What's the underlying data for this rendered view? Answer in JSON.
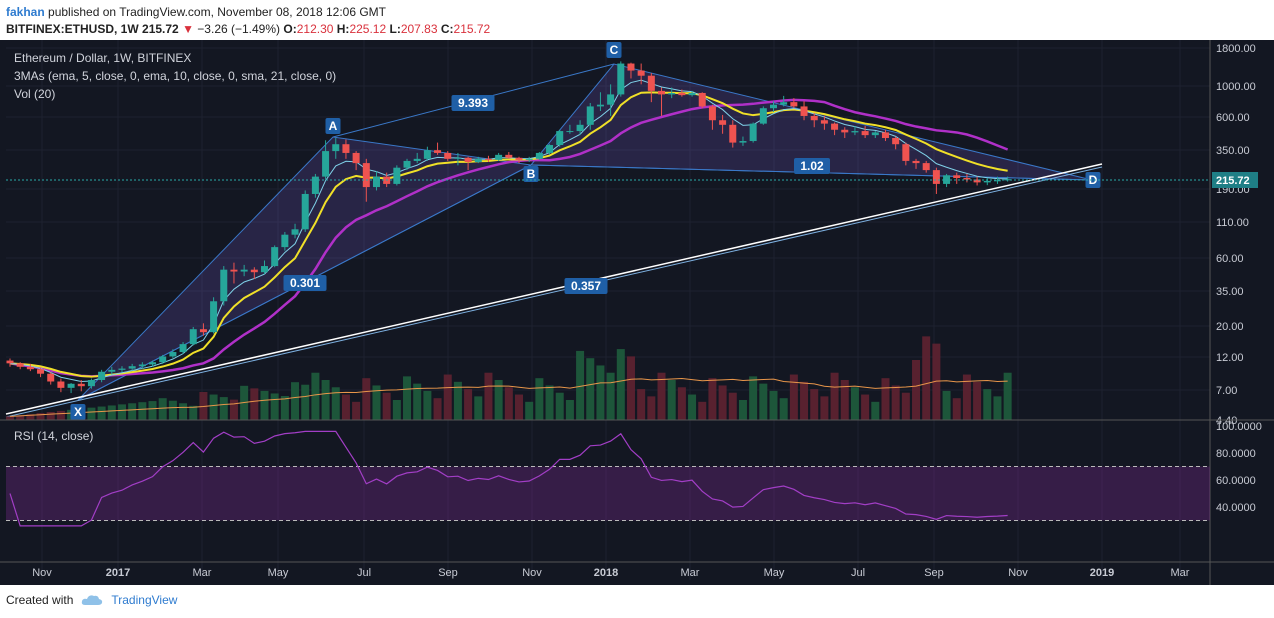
{
  "header": {
    "user": "fakhan",
    "published": "published on TradingView.com, November 08, 2018 12:06 GMT",
    "symbol": "BITFINEX:ETHUSD, 1W",
    "last": "215.72",
    "change": "−3.26 (−1.49%)",
    "open_label": "O:",
    "open": "212.30",
    "high_label": "H:",
    "high": "225.12",
    "low_label": "L:",
    "low": "207.83",
    "close_label": "C:",
    "close": "215.72"
  },
  "legend": {
    "title": "Ethereum / Dollar, 1W, BITFINEX",
    "mas": "3MAs (ema, 5, close, 0, ema, 10, close, 0, sma, 21, close, 0)",
    "vol": "Vol (20)",
    "rsi": "RSI (14, close)"
  },
  "footer": {
    "created": "Created with",
    "brand": "TradingView"
  },
  "colors": {
    "bg": "#131722",
    "grid": "#1e2230",
    "up": "#26a69a",
    "down": "#ef5350",
    "ema5": "#7fd1e8",
    "ema10": "#f0e028",
    "sma21": "#b030c8",
    "label": "#1f5fa6",
    "rsi": "#a23ec6",
    "volMa": "#e8964a"
  },
  "chart_data": {
    "type": "candlestick",
    "timeframe": "1W",
    "price_scale": "log",
    "price_ticks": [
      "1800.00",
      "1000.00",
      "600.00",
      "350.00",
      "190.00",
      "110.00",
      "60.00",
      "35.00",
      "20.00",
      "12.00",
      "7.00",
      "4.40"
    ],
    "time_ticks": [
      "Nov",
      "2017",
      "Mar",
      "May",
      "Jul",
      "Sep",
      "Nov",
      "2018",
      "Mar",
      "May",
      "Jul",
      "Sep",
      "Nov",
      "2019",
      "Mar"
    ],
    "last_price": "215.72",
    "ohlc_weekly_approx": [
      [
        11.5,
        11.9,
        10.4,
        11.0
      ],
      [
        11.0,
        11.2,
        10.0,
        10.4
      ],
      [
        10.4,
        10.9,
        9.7,
        10.0
      ],
      [
        10.0,
        10.2,
        8.8,
        9.3
      ],
      [
        9.3,
        9.5,
        7.8,
        8.2
      ],
      [
        8.2,
        8.6,
        6.9,
        7.4
      ],
      [
        7.4,
        8.0,
        6.8,
        7.9
      ],
      [
        7.9,
        8.4,
        7.0,
        7.6
      ],
      [
        7.6,
        8.6,
        7.3,
        8.4
      ],
      [
        8.4,
        9.9,
        8.1,
        9.6
      ],
      [
        9.6,
        10.4,
        9.2,
        9.9
      ],
      [
        9.9,
        10.5,
        9.5,
        10.1
      ],
      [
        10.1,
        10.9,
        9.8,
        10.5
      ],
      [
        10.5,
        11.2,
        10.1,
        10.8
      ],
      [
        10.8,
        11.5,
        10.4,
        11.2
      ],
      [
        11.2,
        12.6,
        10.9,
        12.3
      ],
      [
        12.3,
        13.8,
        12.0,
        13.2
      ],
      [
        13.2,
        15.5,
        12.8,
        15.0
      ],
      [
        15.0,
        19.8,
        14.7,
        19.1
      ],
      [
        19.1,
        21.0,
        17.2,
        18.2
      ],
      [
        18.2,
        32.0,
        17.8,
        30.0
      ],
      [
        30.0,
        53.0,
        28.0,
        50.0
      ],
      [
        50.0,
        56.0,
        40.0,
        48.5
      ],
      [
        48.5,
        54.0,
        45.0,
        50.0
      ],
      [
        50.0,
        52.0,
        43.0,
        48.0
      ],
      [
        48.0,
        58.0,
        46.5,
        53.0
      ],
      [
        53.0,
        74.0,
        52.0,
        72.0
      ],
      [
        72.0,
        92.0,
        68.0,
        88.0
      ],
      [
        88.0,
        105.0,
        83.0,
        96.0
      ],
      [
        96.0,
        180.0,
        92.0,
        170.0
      ],
      [
        170.0,
        235.0,
        160.0,
        225.0
      ],
      [
        225.0,
        405.0,
        215.0,
        340.0
      ],
      [
        340.0,
        420.0,
        300.0,
        380.0
      ],
      [
        380.0,
        410.0,
        300.0,
        330.0
      ],
      [
        330.0,
        340.0,
        250.0,
        280.0
      ],
      [
        280.0,
        300.0,
        150.0,
        190.0
      ],
      [
        190.0,
        245.0,
        180.0,
        225.0
      ],
      [
        225.0,
        240.0,
        190.0,
        200.0
      ],
      [
        200.0,
        270.0,
        195.0,
        260.0
      ],
      [
        260.0,
        300.0,
        250.0,
        290.0
      ],
      [
        290.0,
        330.0,
        280.0,
        300.0
      ],
      [
        300.0,
        365.0,
        290.0,
        345.0
      ],
      [
        345.0,
        390.0,
        320.0,
        330.0
      ],
      [
        330.0,
        340.0,
        290.0,
        300.0
      ],
      [
        300.0,
        330.0,
        270.0,
        305.0
      ],
      [
        305.0,
        310.0,
        250.0,
        285.0
      ],
      [
        285.0,
        310.0,
        280.0,
        300.0
      ],
      [
        300.0,
        315.0,
        285.0,
        295.0
      ],
      [
        295.0,
        330.0,
        290.0,
        320.0
      ],
      [
        320.0,
        335.0,
        300.0,
        305.0
      ],
      [
        305.0,
        310.0,
        280.0,
        295.0
      ],
      [
        295.0,
        310.0,
        285.0,
        300.0
      ],
      [
        300.0,
        335.0,
        295.0,
        330.0
      ],
      [
        330.0,
        380.0,
        320.0,
        375.0
      ],
      [
        375.0,
        480.0,
        365.0,
        470.0
      ],
      [
        470.0,
        520.0,
        450.0,
        470.0
      ],
      [
        470.0,
        560.0,
        440.0,
        520.0
      ],
      [
        520.0,
        740.0,
        480.0,
        700.0
      ],
      [
        700.0,
        880.0,
        650.0,
        720.0
      ],
      [
        720.0,
        1000.0,
        600.0,
        850.0
      ],
      [
        850.0,
        1450.0,
        820.0,
        1400.0
      ],
      [
        1400.0,
        1420.0,
        1100.0,
        1250.0
      ],
      [
        1250.0,
        1400.0,
        1000.0,
        1150.0
      ],
      [
        1150.0,
        1200.0,
        750.0,
        900.0
      ],
      [
        900.0,
        950.0,
        600.0,
        850.0
      ],
      [
        850.0,
        950.0,
        800.0,
        870.0
      ],
      [
        870.0,
        920.0,
        820.0,
        840.0
      ],
      [
        840.0,
        900.0,
        820.0,
        870.0
      ],
      [
        870.0,
        880.0,
        680.0,
        700.0
      ],
      [
        700.0,
        720.0,
        480.0,
        560.0
      ],
      [
        560.0,
        610.0,
        450.0,
        520.0
      ],
      [
        520.0,
        560.0,
        360.0,
        390.0
      ],
      [
        390.0,
        430.0,
        370.0,
        400.0
      ],
      [
        400.0,
        540.0,
        390.0,
        530.0
      ],
      [
        530.0,
        700.0,
        520.0,
        680.0
      ],
      [
        680.0,
        760.0,
        640.0,
        720.0
      ],
      [
        720.0,
        830.0,
        700.0,
        750.0
      ],
      [
        750.0,
        800.0,
        680.0,
        700.0
      ],
      [
        700.0,
        760.0,
        560.0,
        600.0
      ],
      [
        600.0,
        630.0,
        500.0,
        560.0
      ],
      [
        560.0,
        600.0,
        480.0,
        530.0
      ],
      [
        530.0,
        540.0,
        440.0,
        480.0
      ],
      [
        480.0,
        500.0,
        420.0,
        460.0
      ],
      [
        460.0,
        510.0,
        440.0,
        470.0
      ],
      [
        470.0,
        510.0,
        420.0,
        440.0
      ],
      [
        440.0,
        470.0,
        420.0,
        460.0
      ],
      [
        460.0,
        480.0,
        400.0,
        420.0
      ],
      [
        420.0,
        430.0,
        350.0,
        380.0
      ],
      [
        380.0,
        390.0,
        270.0,
        290.0
      ],
      [
        290.0,
        300.0,
        255.0,
        280.0
      ],
      [
        280.0,
        290.0,
        240.0,
        250.0
      ],
      [
        250.0,
        260.0,
        170.0,
        200.0
      ],
      [
        200.0,
        235.0,
        190.0,
        230.0
      ],
      [
        230.0,
        240.0,
        200.0,
        220.0
      ],
      [
        220.0,
        235.0,
        205.0,
        215.0
      ],
      [
        215.0,
        225.0,
        195.0,
        205.0
      ],
      [
        205.0,
        220.0,
        196.0,
        210.0
      ],
      [
        210.0,
        225.0,
        200.0,
        212.0
      ],
      [
        212.0,
        225.0,
        207.8,
        215.72
      ]
    ],
    "patterns": [
      {
        "points": [
          "X",
          "A",
          "B",
          "C",
          "D"
        ],
        "ratios": [
          "0.301",
          "9.393",
          "1.02"
        ]
      },
      {
        "trendline_label": "0.357"
      }
    ],
    "rsi_ticks": [
      "100.0000",
      "80.0000",
      "60.0000",
      "40.0000"
    ],
    "rsi_levels": [
      70,
      30
    ]
  }
}
